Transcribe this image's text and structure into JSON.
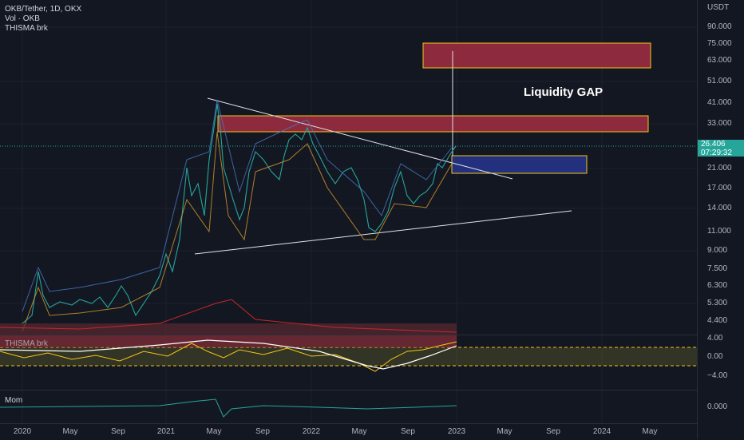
{
  "symbol_title": "OKB/Tether, 1D, OKX",
  "indicators": {
    "volume": "Vol · OKB",
    "thisma": "THISMA brk",
    "thisma_pane": "THISMA brk",
    "momentum": "Mom"
  },
  "price_axis": {
    "currency": "USDT",
    "ticks": [
      "90.000",
      "75.000",
      "63.000",
      "51.000",
      "41.000",
      "33.000",
      "26.406",
      "21.000",
      "17.000",
      "14.000",
      "11.000",
      "9.000",
      "7.500",
      "6.300",
      "5.300",
      "4.400"
    ],
    "thisma_ticks": [
      "4.00",
      "0.00",
      "−4.00"
    ],
    "mom_ticks": [
      "0.000"
    ]
  },
  "last_price": {
    "value": "26.406",
    "countdown": "07:29:32"
  },
  "time_axis": [
    "2020",
    "May",
    "Sep",
    "2021",
    "May",
    "Sep",
    "2022",
    "May",
    "Sep",
    "2023",
    "May",
    "Sep",
    "2024",
    "May"
  ],
  "annotation": "Liquidity GAP",
  "colors": {
    "background": "#131722",
    "resistance_zone": "#8e2a3e",
    "zone_border": "#f5c518",
    "support_zone": "#23307e",
    "last_price": "#26a69a",
    "trendline": "#e0e3eb"
  }
}
